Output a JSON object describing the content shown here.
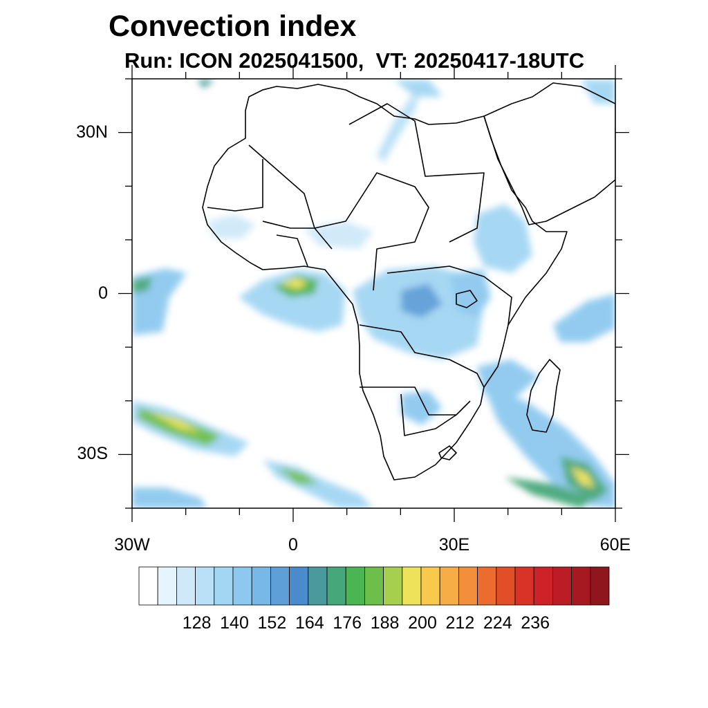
{
  "header": {
    "title": "Convection index",
    "subtitle": "Run: ICON 2025041500,  VT: 20250417-18UTC"
  },
  "map": {
    "lon_range": [
      -30,
      60
    ],
    "lat_range": [
      -40,
      40
    ],
    "lat_labels": [
      {
        "text": "30N",
        "lat": 30
      },
      {
        "text": "0",
        "lat": 0
      },
      {
        "text": "30S",
        "lat": -30
      }
    ],
    "lon_labels": [
      {
        "text": "30W",
        "lon": -30
      },
      {
        "text": "0",
        "lon": 0
      },
      {
        "text": "30E",
        "lon": 30
      },
      {
        "text": "60E",
        "lon": 60
      }
    ]
  },
  "colorbar": {
    "labels": [
      "128",
      "140",
      "152",
      "164",
      "176",
      "188",
      "200",
      "212",
      "224",
      "236"
    ],
    "colors": [
      "#ffffff",
      "#e6f4fd",
      "#cfe9f9",
      "#b8e0f6",
      "#a2d6f3",
      "#8dc9ef",
      "#78b8e6",
      "#5e9fd8",
      "#4a8ccb",
      "#4a9a9c",
      "#46a77a",
      "#4bb453",
      "#6dbe4a",
      "#a7cf4e",
      "#ede259",
      "#f8c94d",
      "#f7ad46",
      "#f38f3a",
      "#ec6c2f",
      "#e24e28",
      "#d93327",
      "#cd2228",
      "#bb1c25",
      "#a61921",
      "#8e161c"
    ]
  }
}
